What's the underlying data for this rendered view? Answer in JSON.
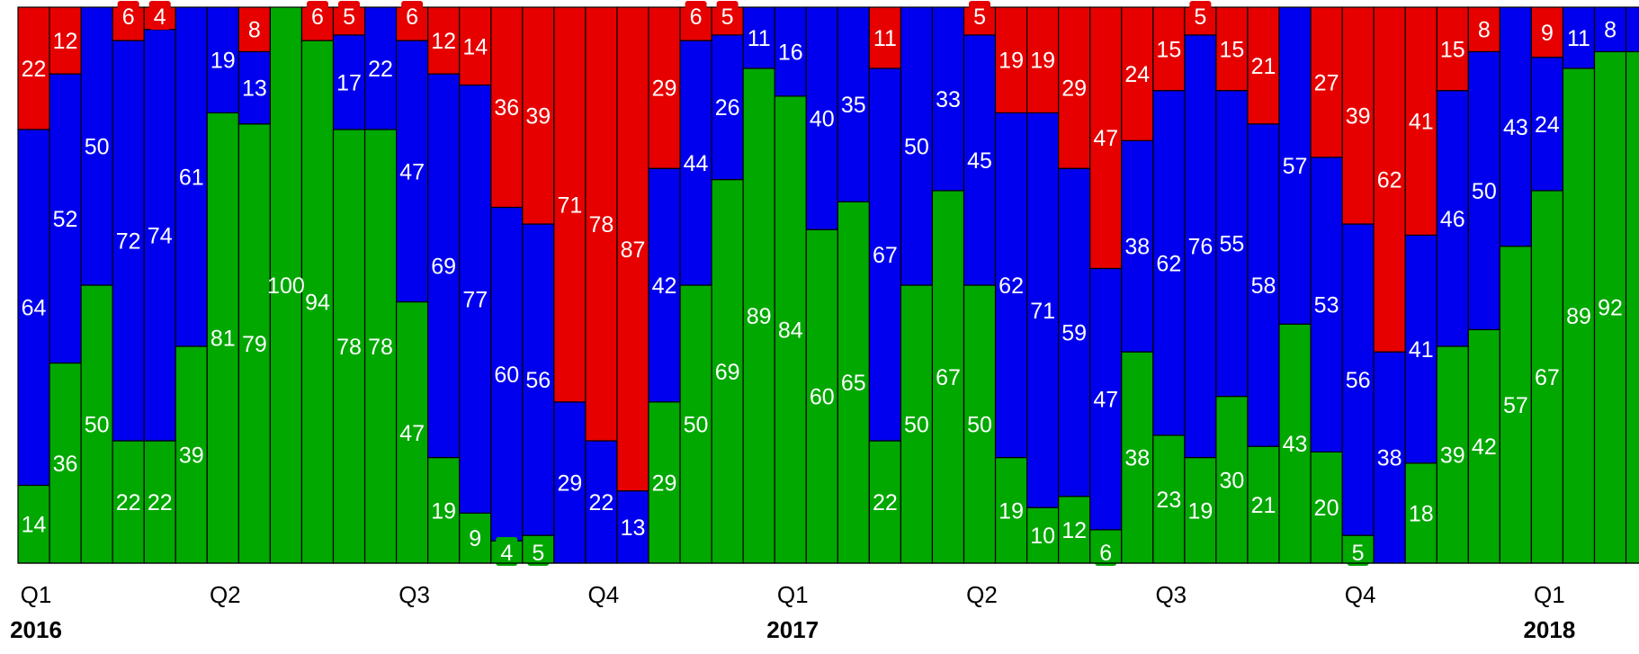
{
  "chart_data": {
    "type": "bar",
    "stacked": true,
    "normalized": true,
    "ylim": [
      0,
      100
    ],
    "bar_count": 52,
    "series": [
      {
        "name": "",
        "color": "#00a800",
        "values": [
          14,
          36,
          50,
          22,
          22,
          39,
          81,
          79,
          100,
          94,
          78,
          78,
          47,
          19,
          9,
          4,
          5,
          0,
          0,
          0,
          29,
          50,
          69,
          89,
          84,
          60,
          65,
          22,
          50,
          67,
          50,
          19,
          10,
          12,
          6,
          38,
          23,
          19,
          30,
          21,
          43,
          20,
          5,
          0,
          18,
          39,
          42,
          57,
          67,
          89,
          92,
          92
        ]
      },
      {
        "name": "",
        "color": "#0000ee",
        "values": [
          64,
          52,
          50,
          72,
          74,
          61,
          19,
          13,
          0,
          0,
          17,
          22,
          47,
          69,
          77,
          60,
          56,
          29,
          22,
          13,
          42,
          44,
          26,
          11,
          16,
          40,
          35,
          67,
          50,
          33,
          45,
          62,
          71,
          59,
          47,
          38,
          62,
          76,
          55,
          58,
          57,
          53,
          56,
          38,
          41,
          46,
          50,
          43,
          24,
          11,
          8,
          8
        ]
      },
      {
        "name": "",
        "color": "#e60000",
        "values": [
          22,
          12,
          0,
          6,
          4,
          0,
          0,
          8,
          0,
          6,
          5,
          0,
          6,
          12,
          14,
          36,
          39,
          71,
          78,
          87,
          29,
          6,
          5,
          0,
          0,
          0,
          0,
          11,
          0,
          0,
          5,
          19,
          19,
          29,
          47,
          24,
          15,
          5,
          15,
          21,
          0,
          27,
          39,
          62,
          41,
          15,
          8,
          0,
          9,
          0,
          0,
          0
        ]
      }
    ],
    "value_labels": [
      [
        "14",
        "64",
        "22"
      ],
      [
        "36",
        "52",
        "12"
      ],
      [
        "50",
        "50",
        ""
      ],
      [
        "22",
        "72",
        "6"
      ],
      [
        "22",
        "74",
        "4"
      ],
      [
        "39",
        "61",
        ""
      ],
      [
        "81",
        "19",
        ""
      ],
      [
        "79",
        "13",
        "8"
      ],
      [
        "100",
        "",
        ""
      ],
      [
        "94",
        "",
        "6"
      ],
      [
        "78",
        "17",
        "5"
      ],
      [
        "78",
        "22",
        ""
      ],
      [
        "47",
        "47",
        "6"
      ],
      [
        "19",
        "69",
        "12"
      ],
      [
        "9",
        "77",
        "14"
      ],
      [
        "4",
        "60",
        "36"
      ],
      [
        "5",
        "56",
        "39"
      ],
      [
        "",
        "29",
        "71"
      ],
      [
        "",
        "22",
        "78"
      ],
      [
        "",
        "13",
        "87"
      ],
      [
        "29",
        "42",
        "29"
      ],
      [
        "50",
        "44",
        "6"
      ],
      [
        "69",
        "26",
        "5"
      ],
      [
        "89",
        "11",
        ""
      ],
      [
        "84",
        "16",
        ""
      ],
      [
        "60",
        "40",
        ""
      ],
      [
        "65",
        "35",
        ""
      ],
      [
        "22",
        "67",
        "11"
      ],
      [
        "50",
        "50",
        ""
      ],
      [
        "67",
        "33",
        ""
      ],
      [
        "50",
        "45",
        "5"
      ],
      [
        "19",
        "62",
        "19"
      ],
      [
        "10",
        "71",
        "19"
      ],
      [
        "12",
        "59",
        "29"
      ],
      [
        "6",
        "47",
        "47"
      ],
      [
        "38",
        "38",
        "24"
      ],
      [
        "23",
        "62",
        "15"
      ],
      [
        "19",
        "76",
        "5"
      ],
      [
        "30",
        "55",
        "15"
      ],
      [
        "21",
        "58",
        "21"
      ],
      [
        "43",
        "57",
        ""
      ],
      [
        "20",
        "53",
        "27"
      ],
      [
        "5",
        "56",
        "39"
      ],
      [
        "",
        "38",
        "62"
      ],
      [
        "18",
        "41",
        "41"
      ],
      [
        "39",
        "46",
        "15"
      ],
      [
        "42",
        "50",
        "8"
      ],
      [
        "57",
        "43",
        ""
      ],
      [
        "67",
        "24",
        "9"
      ],
      [
        "89",
        "11",
        ""
      ],
      [
        "92",
        "8",
        ""
      ],
      [
        "",
        "",
        ""
      ]
    ],
    "x_ticks": [
      {
        "label": "Q1",
        "bar": 0
      },
      {
        "label": "Q2",
        "bar": 6
      },
      {
        "label": "Q3",
        "bar": 12
      },
      {
        "label": "Q4",
        "bar": 18
      },
      {
        "label": "Q1",
        "bar": 24
      },
      {
        "label": "Q2",
        "bar": 30
      },
      {
        "label": "Q3",
        "bar": 36
      },
      {
        "label": "Q4",
        "bar": 42
      },
      {
        "label": "Q1",
        "bar": 48
      }
    ],
    "year_labels": [
      {
        "label": "2016",
        "bar": 0
      },
      {
        "label": "2017",
        "bar": 24
      },
      {
        "label": "2018",
        "bar": 48
      }
    ]
  }
}
